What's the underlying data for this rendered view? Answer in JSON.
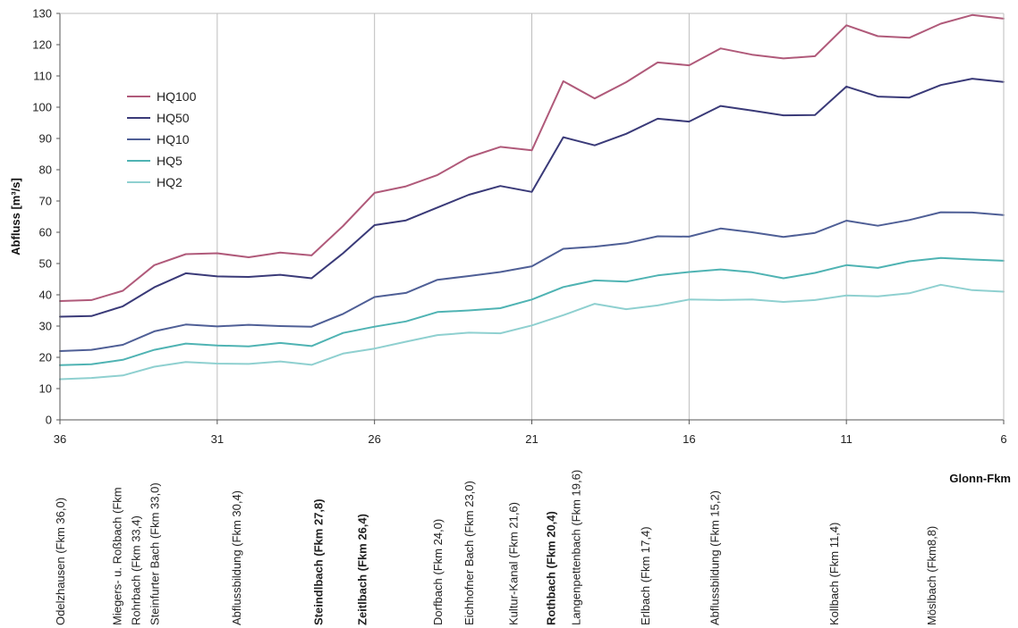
{
  "chart_data": {
    "type": "line",
    "xlabel": "Glonn-Fkm",
    "ylabel": "Abfluss [m³/s]",
    "xlim": [
      36,
      6
    ],
    "ylim": [
      0,
      130
    ],
    "x_ticks": [
      36,
      31,
      26,
      21,
      16,
      11,
      6
    ],
    "y_ticks": [
      0,
      10,
      20,
      30,
      40,
      50,
      60,
      70,
      80,
      90,
      100,
      110,
      120,
      130
    ],
    "grid": "vertical",
    "legend_position": "top-left",
    "x": [
      36.0,
      35.0,
      34.0,
      33.0,
      32.0,
      31.0,
      30.0,
      29.0,
      28.0,
      27.0,
      26.0,
      25.0,
      24.0,
      23.0,
      22.0,
      21.0,
      20.0,
      19.0,
      18.0,
      17.0,
      16.0,
      15.0,
      14.0,
      13.0,
      12.0,
      11.0,
      10.0,
      9.0,
      8.0,
      7.0,
      6.0
    ],
    "series": [
      {
        "name": "HQ100",
        "color": "#b05a7a",
        "values": [
          38,
          38.3,
          41.3,
          49.5,
          53,
          53.3,
          52,
          53.5,
          52.6,
          62,
          72.6,
          74.7,
          78.3,
          84,
          87.3,
          86.2,
          108.3,
          102.8,
          108,
          114.3,
          113.4,
          118.8,
          116.8,
          115.6,
          116.3,
          126.2,
          122.7,
          122.2,
          126.7,
          129.5,
          128.3
        ]
      },
      {
        "name": "HQ50",
        "color": "#3a3a78",
        "values": [
          33,
          33.2,
          36.3,
          42.4,
          46.9,
          45.9,
          45.7,
          46.4,
          45.3,
          53.3,
          62.3,
          63.8,
          67.9,
          72,
          74.8,
          72.9,
          90.4,
          87.8,
          91.5,
          96.3,
          95.4,
          100.4,
          98.9,
          97.4,
          97.5,
          106.6,
          103.4,
          103.1,
          107.1,
          109.1,
          108.1
        ]
      },
      {
        "name": "HQ10",
        "color": "#4f5f96",
        "values": [
          22,
          22.4,
          24,
          28.3,
          30.5,
          29.9,
          30.4,
          30,
          29.8,
          33.9,
          39.3,
          40.6,
          44.8,
          46,
          47.3,
          49.1,
          54.7,
          55.4,
          56.5,
          58.7,
          58.6,
          61.2,
          60,
          58.5,
          59.8,
          63.7,
          62.1,
          63.9,
          66.4,
          66.3,
          65.5
        ]
      },
      {
        "name": "HQ5",
        "color": "#4fb3b3",
        "values": [
          17.5,
          17.8,
          19.2,
          22.4,
          24.4,
          23.8,
          23.5,
          24.6,
          23.6,
          27.8,
          29.8,
          31.5,
          34.5,
          35,
          35.7,
          38.5,
          42.5,
          44.6,
          44.2,
          46.2,
          47.3,
          48.1,
          47.2,
          45.3,
          47,
          49.5,
          48.6,
          50.7,
          51.8,
          51.3,
          50.9
        ]
      },
      {
        "name": "HQ2",
        "color": "#8fd0d0",
        "values": [
          13,
          13.4,
          14.2,
          17,
          18.5,
          18,
          17.9,
          18.7,
          17.6,
          21.2,
          22.8,
          25,
          27.1,
          27.9,
          27.7,
          30.2,
          33.5,
          37.1,
          35.4,
          36.6,
          38.5,
          38.3,
          38.5,
          37.7,
          38.3,
          39.8,
          39.5,
          40.5,
          43.2,
          41.5,
          41
        ]
      }
    ],
    "tributaries": [
      {
        "label": "Odelzhausen (Fkm 36,0)",
        "km": 36.0,
        "bold": false
      },
      {
        "label": "Miegers- u. Roßbach (Fkm",
        "km": 34.2,
        "bold": false
      },
      {
        "label": "Rohrbach (Fkm 33,4)",
        "km": 33.6,
        "bold": false
      },
      {
        "label": "Steinfurter Bach (Fkm 33,0)",
        "km": 33.0,
        "bold": false
      },
      {
        "label": "Abflussbildung (Fkm 30,4)",
        "km": 30.4,
        "bold": false
      },
      {
        "label": "Steindlbach (Fkm 27,8)",
        "km": 27.8,
        "bold": true
      },
      {
        "label": "Zeitlbach (Fkm 26,4)",
        "km": 26.4,
        "bold": true
      },
      {
        "label": "Dorfbach (Fkm 24,0)",
        "km": 24.0,
        "bold": false
      },
      {
        "label": "Eichhofner Bach (Fkm 23,0)",
        "km": 23.0,
        "bold": false
      },
      {
        "label": "Kultur-Kanal (Fkm 21,6)",
        "km": 21.6,
        "bold": false
      },
      {
        "label": "Rothbach (Fkm 20,4)",
        "km": 20.4,
        "bold": true
      },
      {
        "label": "Langenpettenbach (Fkm 19,6)",
        "km": 19.6,
        "bold": false
      },
      {
        "label": "Erlbach (Fkm 17,4)",
        "km": 17.4,
        "bold": false
      },
      {
        "label": "Abflussbildung (Fkm 15,2)",
        "km": 15.2,
        "bold": false
      },
      {
        "label": "Kollbach (Fkm 11,4)",
        "km": 11.4,
        "bold": false
      },
      {
        "label": "Möslbach (Fkm8,8)",
        "km": 8.3,
        "bold": false
      }
    ]
  }
}
